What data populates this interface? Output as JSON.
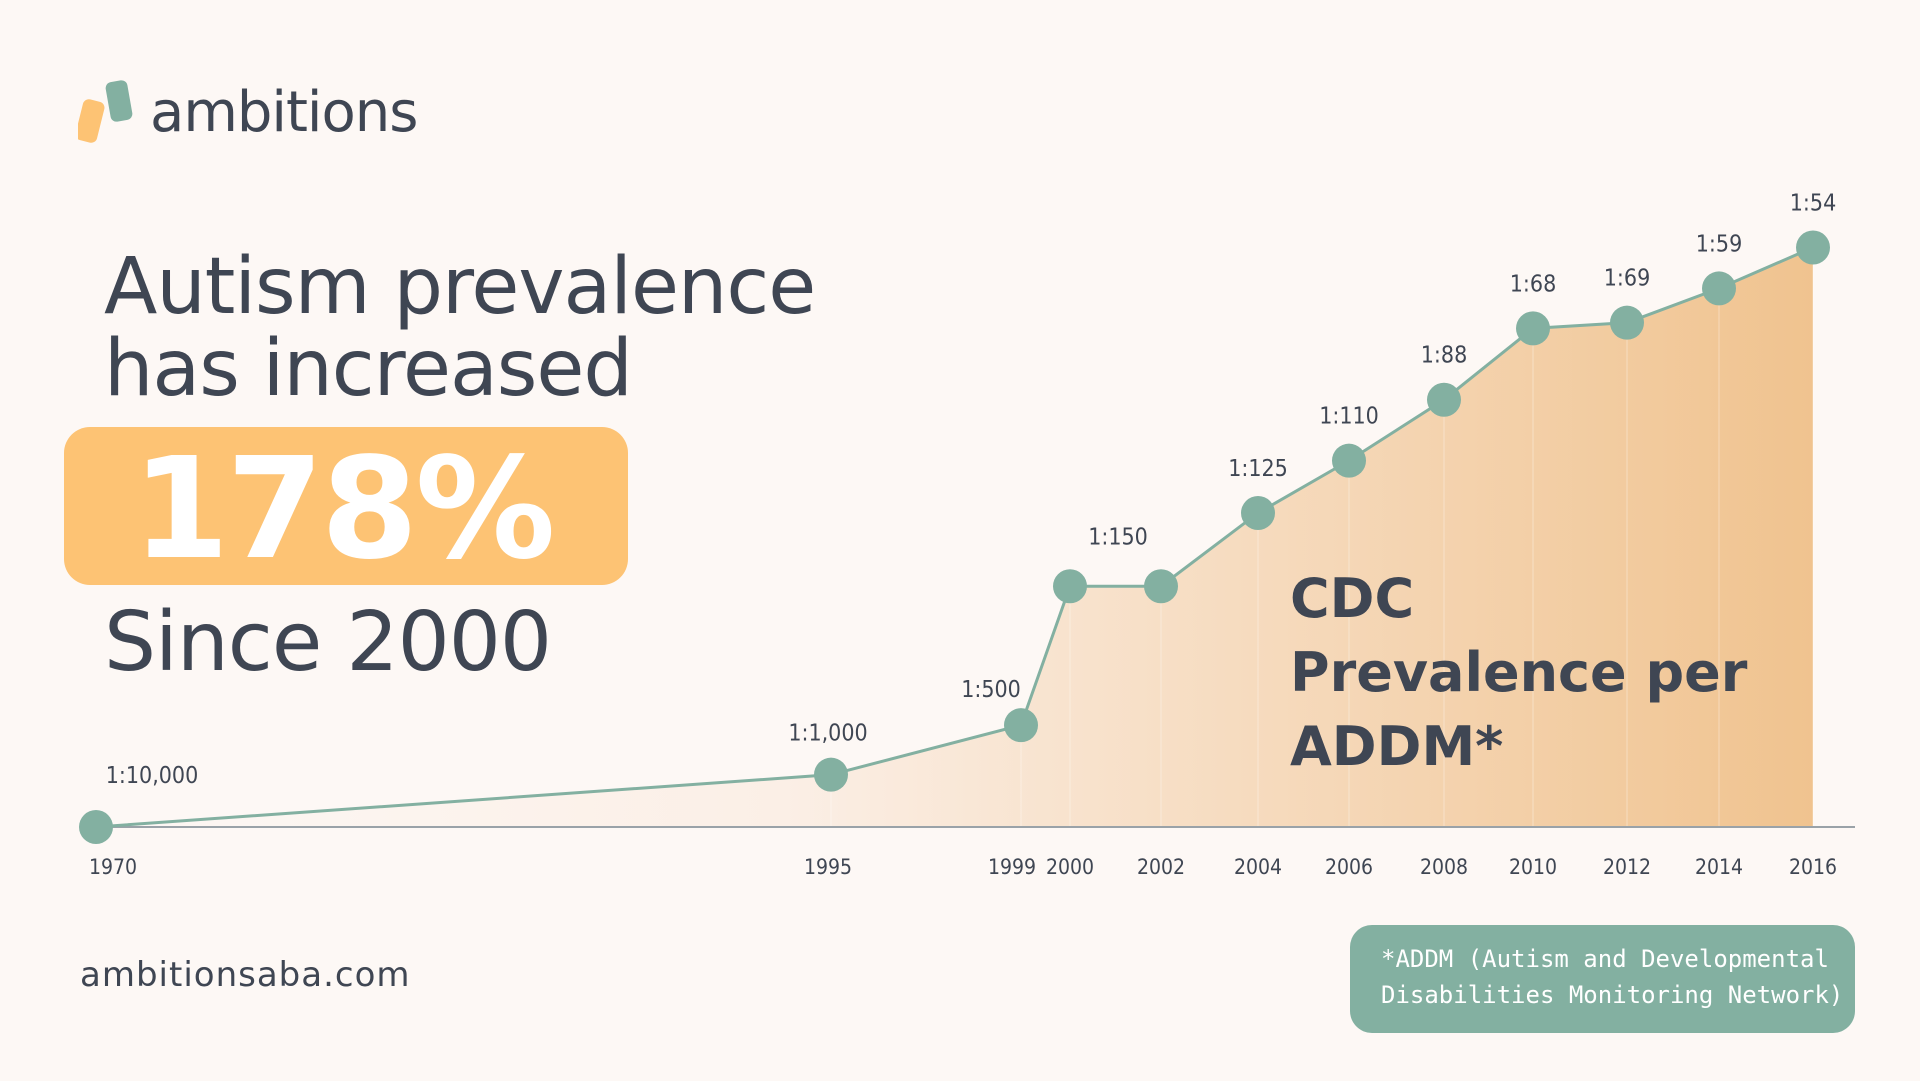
{
  "brand": {
    "logo_text": "ambitions",
    "logo_icon": "ambitions-logo-icon",
    "website": "ambitionsaba.com"
  },
  "headline": {
    "line1": "Autism prevalence",
    "line2": "has increased",
    "percent": "178%",
    "since": "Since 2000"
  },
  "footnote": {
    "line1": "*ADDM (Autism and Developmental",
    "line2": "Disabilities Monitoring Network)"
  },
  "colors": {
    "background": "#fdf8f5",
    "text": "#3f4653",
    "accent_orange": "#fdc374",
    "accent_teal": "#83b0a1",
    "area_light": "#fbefe6",
    "area_dark": "#f0c38f"
  },
  "chart_data": {
    "type": "area",
    "title": "CDC Prevalence per ADDM*",
    "xlabel": "",
    "ylabel": "",
    "grid": false,
    "legend": "none",
    "x": [
      1970,
      1995,
      1999,
      2000,
      2002,
      2004,
      2006,
      2008,
      2010,
      2012,
      2014,
      2016
    ],
    "x_tick_labels": [
      "1970",
      "1995",
      "1999",
      "2000",
      "2002",
      "2004",
      "2006",
      "2008",
      "2010",
      "2012",
      "2014",
      "2016"
    ],
    "data_labels": [
      "1:10,000",
      "1:1,000",
      "1:500",
      "1:150",
      "",
      "1:125",
      "1:110",
      "1:88",
      "1:68",
      "1:69",
      "1:59",
      "1:54"
    ],
    "series": [
      {
        "values": [
          0,
          55,
          107,
          253,
          253,
          330,
          385,
          449,
          524,
          530,
          566,
          609
        ]
      }
    ],
    "ylim": [
      0,
      640
    ]
  }
}
